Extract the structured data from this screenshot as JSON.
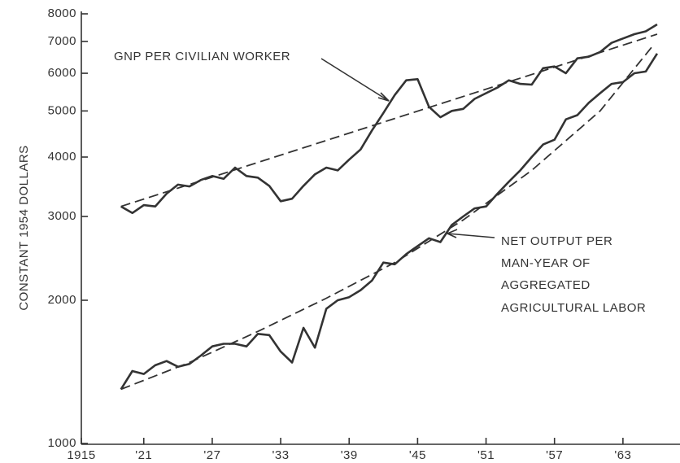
{
  "chart_data": {
    "type": "line",
    "y_label": "CONSTANT 1954 DOLLARS",
    "log_y": true,
    "xlim": [
      1915,
      1968
    ],
    "ylim": [
      1000,
      8000
    ],
    "xticks": [
      1915,
      {
        "value": 1921,
        "label": "'21"
      },
      {
        "value": 1927,
        "label": "'27"
      },
      {
        "value": 1933,
        "label": "'33"
      },
      {
        "value": 1939,
        "label": "'39"
      },
      {
        "value": 1945,
        "label": "'45"
      },
      {
        "value": 1951,
        "label": "'51"
      },
      {
        "value": 1957,
        "label": "'57"
      },
      {
        "value": 1963,
        "label": "'63"
      }
    ],
    "yticks": [
      1000,
      2000,
      3000,
      4000,
      5000,
      6000,
      7000,
      8000
    ],
    "x": [
      1919,
      1920,
      1921,
      1922,
      1923,
      1924,
      1925,
      1926,
      1927,
      1928,
      1929,
      1930,
      1931,
      1932,
      1933,
      1934,
      1935,
      1936,
      1937,
      1938,
      1939,
      1940,
      1941,
      1942,
      1943,
      1944,
      1945,
      1946,
      1947,
      1948,
      1949,
      1950,
      1951,
      1952,
      1953,
      1954,
      1955,
      1956,
      1957,
      1958,
      1959,
      1960,
      1961,
      1962,
      1963,
      1964,
      1965,
      1966
    ],
    "series": [
      {
        "color": "#333333",
        "values": [
          3150,
          3050,
          3170,
          3150,
          3350,
          3500,
          3470,
          3580,
          3650,
          3600,
          3800,
          3650,
          3620,
          3480,
          3230,
          3270,
          3480,
          3680,
          3800,
          3750,
          3950,
          4150,
          4550,
          4950,
          5400,
          5800,
          5830,
          5100,
          4850,
          5000,
          5050,
          5300,
          5450,
          5600,
          5800,
          5700,
          5680,
          6150,
          6200,
          6000,
          6450,
          6500,
          6650,
          6950,
          7100,
          7250,
          7350,
          7600
        ]
      },
      {
        "color": "#333333",
        "values": [
          1300,
          1420,
          1400,
          1460,
          1490,
          1450,
          1470,
          1530,
          1600,
          1620,
          1620,
          1600,
          1700,
          1690,
          1560,
          1480,
          1750,
          1590,
          1920,
          2000,
          2030,
          2100,
          2200,
          2400,
          2380,
          2500,
          2600,
          2700,
          2650,
          2880,
          3000,
          3120,
          3150,
          3350,
          3550,
          3750,
          4000,
          4250,
          4350,
          4800,
          4900,
          5200,
          5450,
          5700,
          5750,
          6000,
          6050,
          6600
        ]
      },
      {
        "color": "#333333",
        "dashed": true,
        "x": [
          1919,
          1966
        ],
        "values": [
          3150,
          7250
        ]
      },
      {
        "color": "#333333",
        "dashed": true,
        "x": [
          1919,
          1925,
          1931,
          1937,
          1943,
          1949,
          1955,
          1961,
          1965.5
        ],
        "values": [
          1300,
          1480,
          1720,
          2020,
          2400,
          2950,
          3750,
          5000,
          6800
        ]
      }
    ],
    "annotations": [
      {
        "lines": [
          "GNP PER CIVILIAN WORKER"
        ]
      },
      {
        "lines": [
          "NET OUTPUT PER",
          "MAN-YEAR OF",
          "AGGREGATED",
          "AGRICULTURAL LABOR"
        ]
      }
    ]
  }
}
